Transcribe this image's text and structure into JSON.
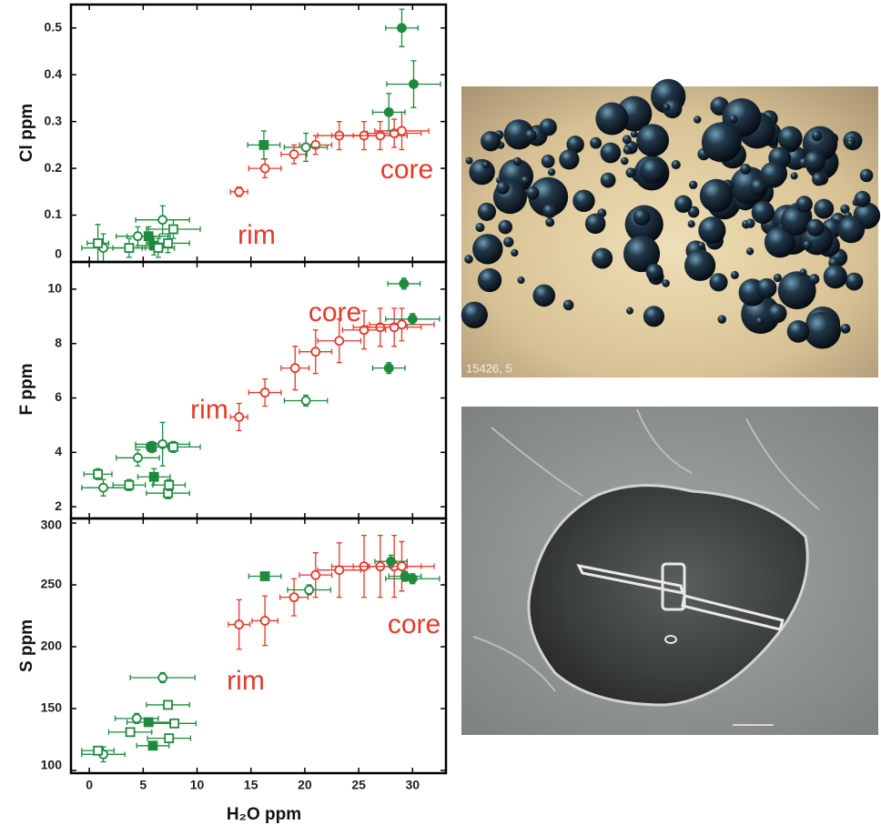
{
  "chart_data": [
    {
      "type": "scatter",
      "ylabel": "Cl ppm",
      "ylim": [
        0,
        0.55
      ],
      "yticks": [
        0,
        0.1,
        0.2,
        0.3,
        0.4,
        0.5
      ],
      "xlim": [
        -1.7,
        33.1
      ],
      "xticks": [
        0,
        5,
        10,
        15,
        20,
        25,
        30
      ],
      "annotations": [
        "rim",
        "core"
      ],
      "series": [
        {
          "color": "#e5392a",
          "marker": "open-circle",
          "x": [
            13.9,
            16.3,
            19,
            21,
            23.2,
            25.5,
            27,
            28.3,
            29
          ],
          "values": [
            0.15,
            0.2,
            0.23,
            0.25,
            0.27,
            0.27,
            0.27,
            0.275,
            0.28
          ],
          "xerr": [
            0.8,
            1.5,
            1.2,
            1.5,
            2,
            3,
            2.5,
            2.5,
            2.5
          ],
          "yerr": [
            0.01,
            0.02,
            0.02,
            0.02,
            0.03,
            0.03,
            0.03,
            0.03,
            0.04
          ]
        },
        {
          "color": "#1e8a3e",
          "marker": "filled-circle",
          "x": [
            29,
            30.1,
            27.8
          ],
          "values": [
            0.5,
            0.38,
            0.32
          ],
          "xerr": [
            1.5,
            2.5,
            1.5
          ],
          "yerr": [
            0.04,
            0.05,
            0.04
          ]
        },
        {
          "color": "#1e8a3e",
          "marker": "filled-square",
          "x": [
            16.2,
            5.5,
            6
          ],
          "values": [
            0.25,
            0.055,
            0.035
          ],
          "xerr": [
            1.5,
            2,
            1.5
          ],
          "yerr": [
            0.03,
            0.02,
            0.02
          ]
        },
        {
          "color": "#1e8a3e",
          "marker": "open-circle",
          "x": [
            20.1,
            6.8,
            4.5,
            1.3
          ],
          "values": [
            0.245,
            0.09,
            0.055,
            0.03
          ],
          "xerr": [
            2,
            2.5,
            2,
            2
          ],
          "yerr": [
            0.03,
            0.03,
            0.02,
            0.03
          ]
        },
        {
          "color": "#1e8a3e",
          "marker": "open-square",
          "x": [
            7.8,
            7.3,
            0.8,
            3.7,
            6.4
          ],
          "values": [
            0.07,
            0.04,
            0.04,
            0.03,
            0.03
          ],
          "xerr": [
            2.5,
            2,
            1,
            1.5,
            1.5
          ],
          "yerr": [
            0.02,
            0.02,
            0.04,
            0.02,
            0.02
          ]
        }
      ]
    },
    {
      "type": "scatter",
      "ylabel": "F ppm",
      "ylim": [
        1.57,
        11
      ],
      "yticks": [
        2,
        4,
        6,
        8,
        10
      ],
      "xlim": [
        -1.7,
        33.1
      ],
      "xticks": [
        0,
        5,
        10,
        15,
        20,
        25,
        30
      ],
      "annotations": [
        "rim",
        "core"
      ],
      "series": [
        {
          "color": "#e5392a",
          "marker": "open-circle",
          "x": [
            13.9,
            16.3,
            19.1,
            21,
            23.2,
            25.5,
            27,
            28.3,
            29
          ],
          "values": [
            5.3,
            6.2,
            7.1,
            7.7,
            8.1,
            8.5,
            8.6,
            8.6,
            8.7
          ],
          "xerr": [
            0.8,
            1.5,
            1.3,
            1.5,
            2,
            2,
            2.5,
            2.5,
            3
          ],
          "yerr": [
            0.5,
            0.5,
            0.8,
            0.8,
            0.8,
            0.7,
            0.7,
            0.7,
            0.6
          ]
        },
        {
          "color": "#1e8a3e",
          "marker": "filled-circle",
          "x": [
            29.2,
            30,
            27.8
          ],
          "values": [
            10.2,
            8.9,
            7.1
          ],
          "xerr": [
            1.5,
            2.5,
            1.5
          ],
          "yerr": [
            0.2,
            0.2,
            0.2
          ]
        },
        {
          "color": "#1e8a3e",
          "marker": "filled-square",
          "x": [
            5.8,
            6
          ],
          "values": [
            4.2,
            3.1
          ],
          "xerr": [
            1.5,
            1.5
          ],
          "yerr": [
            0.2,
            0.3
          ]
        },
        {
          "color": "#1e8a3e",
          "marker": "open-circle",
          "x": [
            20.1,
            6.8,
            4.5,
            1.3
          ],
          "values": [
            5.9,
            4.3,
            3.8,
            2.7
          ],
          "xerr": [
            2,
            2.5,
            2,
            2
          ],
          "yerr": [
            0.2,
            0.8,
            0.3,
            0.3
          ]
        },
        {
          "color": "#1e8a3e",
          "marker": "open-square",
          "x": [
            7.8,
            7.3,
            0.8,
            3.7,
            7.4
          ],
          "values": [
            4.2,
            2.5,
            3.2,
            2.8,
            2.8
          ],
          "xerr": [
            2.5,
            2,
            1.3,
            1.5,
            1.5
          ],
          "yerr": [
            0.2,
            0.2,
            0.2,
            0.2,
            0.2
          ]
        }
      ]
    },
    {
      "type": "scatter",
      "ylabel": "S ppm",
      "xlabel": "H₂O ppm",
      "ylim": [
        97.8,
        303.7
      ],
      "yticks": [
        100,
        150,
        200,
        250,
        300
      ],
      "xlim": [
        -1.7,
        33.1
      ],
      "xticks": [
        0,
        5,
        10,
        15,
        20,
        25,
        30
      ],
      "annotations": [
        "rim",
        "core"
      ],
      "series": [
        {
          "color": "#e5392a",
          "marker": "open-circle",
          "x": [
            13.9,
            16.3,
            19,
            21,
            23.2,
            25.5,
            27,
            28.3,
            29
          ],
          "values": [
            218,
            221,
            240,
            258,
            262,
            265,
            265,
            265,
            265
          ],
          "xerr": [
            1,
            1.2,
            1.3,
            1.5,
            2,
            3,
            2.5,
            2.5,
            3
          ],
          "yerr": [
            20,
            20,
            15,
            18,
            22,
            25,
            25,
            25,
            20
          ]
        },
        {
          "color": "#1e8a3e",
          "marker": "filled-circle",
          "x": [
            28,
            30,
            29.3
          ],
          "values": [
            269,
            255,
            257
          ],
          "xerr": [
            1.5,
            2.5,
            1.5
          ],
          "yerr": [
            5,
            4,
            4
          ]
        },
        {
          "color": "#1e8a3e",
          "marker": "filled-square",
          "x": [
            16.3,
            5.5,
            5.9
          ],
          "values": [
            257,
            139,
            120
          ],
          "xerr": [
            1.5,
            2,
            1.5
          ],
          "yerr": [
            3,
            3,
            3
          ]
        },
        {
          "color": "#1e8a3e",
          "marker": "open-circle",
          "x": [
            20.4,
            6.8,
            4.4,
            1.3
          ],
          "values": [
            246,
            175,
            142,
            113
          ],
          "xerr": [
            2,
            3,
            2,
            2
          ],
          "yerr": [
            4,
            4,
            4,
            6
          ]
        },
        {
          "color": "#1e8a3e",
          "marker": "open-square",
          "x": [
            7.3,
            7.9,
            0.8,
            3.8,
            7.4
          ],
          "values": [
            153,
            138,
            116,
            131,
            126
          ],
          "xerr": [
            2,
            2,
            1.5,
            2,
            2
          ],
          "yerr": [
            3,
            3,
            3,
            3,
            3
          ]
        }
      ]
    }
  ],
  "photos": [
    {
      "caption": "15426, 5"
    }
  ]
}
